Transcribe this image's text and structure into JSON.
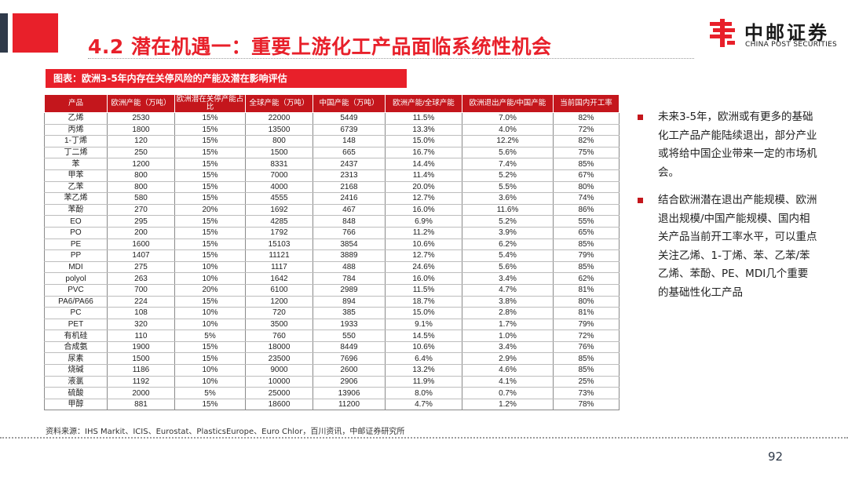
{
  "title": "4.2 潜在机遇一：重要上游化工产品面临系统性机会",
  "logo": {
    "cn": "中邮证券",
    "en": "CHINA POST SECURITIES"
  },
  "figure_title": "图表：欧洲3-5年内存在关停风险的产能及潜在影响评估",
  "table": {
    "headers": [
      "产品",
      "欧洲产能（万吨）",
      "欧洲潜在关停产能占比",
      "全球产能（万吨）",
      "中国产能（万吨）",
      "欧洲产能/全球产能",
      "欧洲退出产能/中国产能",
      "当前国内开工率"
    ],
    "rows": [
      [
        "乙烯",
        "2530",
        "15%",
        "22000",
        "5449",
        "11.5%",
        "7.0%",
        "82%"
      ],
      [
        "丙烯",
        "1800",
        "15%",
        "13500",
        "6739",
        "13.3%",
        "4.0%",
        "72%"
      ],
      [
        "1-丁烯",
        "120",
        "15%",
        "800",
        "148",
        "15.0%",
        "12.2%",
        "82%"
      ],
      [
        "丁二烯",
        "250",
        "15%",
        "1500",
        "665",
        "16.7%",
        "5.6%",
        "75%"
      ],
      [
        "苯",
        "1200",
        "15%",
        "8331",
        "2437",
        "14.4%",
        "7.4%",
        "85%"
      ],
      [
        "甲苯",
        "800",
        "15%",
        "7000",
        "2313",
        "11.4%",
        "5.2%",
        "67%"
      ],
      [
        "乙苯",
        "800",
        "15%",
        "4000",
        "2168",
        "20.0%",
        "5.5%",
        "80%"
      ],
      [
        "苯乙烯",
        "580",
        "15%",
        "4555",
        "2416",
        "12.7%",
        "3.6%",
        "74%"
      ],
      [
        "苯酚",
        "270",
        "20%",
        "1692",
        "467",
        "16.0%",
        "11.6%",
        "86%"
      ],
      [
        "EO",
        "295",
        "15%",
        "4285",
        "848",
        "6.9%",
        "5.2%",
        "55%"
      ],
      [
        "PO",
        "200",
        "15%",
        "1792",
        "766",
        "11.2%",
        "3.9%",
        "65%"
      ],
      [
        "PE",
        "1600",
        "15%",
        "15103",
        "3854",
        "10.6%",
        "6.2%",
        "85%"
      ],
      [
        "PP",
        "1407",
        "15%",
        "11121",
        "3889",
        "12.7%",
        "5.4%",
        "79%"
      ],
      [
        "MDI",
        "275",
        "10%",
        "1117",
        "488",
        "24.6%",
        "5.6%",
        "85%"
      ],
      [
        "polyol",
        "263",
        "10%",
        "1642",
        "784",
        "16.0%",
        "3.4%",
        "62%"
      ],
      [
        "PVC",
        "700",
        "20%",
        "6100",
        "2989",
        "11.5%",
        "4.7%",
        "81%"
      ],
      [
        "PA6/PA66",
        "224",
        "15%",
        "1200",
        "894",
        "18.7%",
        "3.8%",
        "80%"
      ],
      [
        "PC",
        "108",
        "10%",
        "720",
        "385",
        "15.0%",
        "2.8%",
        "81%"
      ],
      [
        "PET",
        "320",
        "10%",
        "3500",
        "1933",
        "9.1%",
        "1.7%",
        "79%"
      ],
      [
        "有机硅",
        "110",
        "5%",
        "760",
        "550",
        "14.5%",
        "1.0%",
        "72%"
      ],
      [
        "合成氨",
        "1900",
        "15%",
        "18000",
        "8449",
        "10.6%",
        "3.4%",
        "76%"
      ],
      [
        "尿素",
        "1500",
        "15%",
        "23500",
        "7696",
        "6.4%",
        "2.9%",
        "85%"
      ],
      [
        "烧碱",
        "1186",
        "10%",
        "9000",
        "2600",
        "13.2%",
        "4.6%",
        "85%"
      ],
      [
        "液氯",
        "1192",
        "10%",
        "10000",
        "2906",
        "11.9%",
        "4.1%",
        "25%"
      ],
      [
        "硫酸",
        "2000",
        "5%",
        "25000",
        "13906",
        "8.0%",
        "0.7%",
        "73%"
      ],
      [
        "甲醇",
        "881",
        "15%",
        "18600",
        "11200",
        "4.7%",
        "1.2%",
        "78%"
      ]
    ],
    "highlight_rows": [
      0,
      2,
      3,
      4,
      5,
      6,
      8,
      9,
      11,
      12,
      13,
      15,
      16,
      17,
      21,
      22
    ],
    "highlight_color": "#e8202a"
  },
  "source": "资料来源：IHS Markit、ICIS、Eurostat、PlasticsEurope、Euro Chlor，百川资讯，中邮证券研究所",
  "bullets": [
    "未来3-5年，欧洲或有更多的基础化工产品产能陆续退出，部分产业或将给中国企业带来一定的市场机会。",
    "结合欧洲潜在退出产能规模、欧洲退出规模/中国产能规模、国内相关产品当前开工率水平，可以重点关注乙烯、1-丁烯、苯、乙苯/苯乙烯、苯酚、PE、MDI几个重要的基础性化工产品"
  ],
  "page_number": "92",
  "colors": {
    "accent": "#e8202a",
    "header": "#c4161c",
    "dark": "#2f3a4a"
  }
}
